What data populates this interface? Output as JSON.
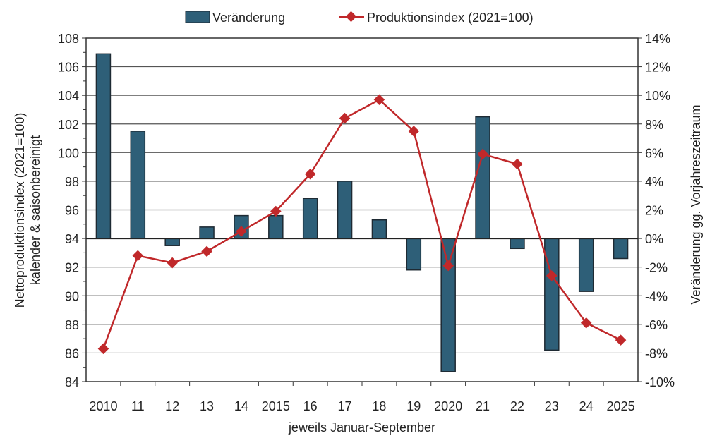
{
  "chart_data": {
    "type": "bar+line",
    "title": "",
    "xlabel": "jeweils Januar-September",
    "ylabel_left": "Nettoproduktionsindex (2021=100) kalender & saisonbereinigt",
    "ylabel_left_lines": [
      "Nettoproduktionsindex (2021=100)",
      "kalender & saisonbereinigt"
    ],
    "ylabel_right": "Veränderung gg. Vorjahreszeitraum",
    "ylim_left": [
      84,
      108
    ],
    "ylim_right": [
      -10,
      14
    ],
    "yticks_left": [
      "84",
      "86",
      "88",
      "90",
      "92",
      "94",
      "96",
      "98",
      "100",
      "102",
      "104",
      "106",
      "108"
    ],
    "yticks_right": [
      "-10%",
      "-8%",
      "-6%",
      "-4%",
      "-2%",
      "0%",
      "2%",
      "4%",
      "6%",
      "8%",
      "10%",
      "12%",
      "14%"
    ],
    "categories": [
      "2010",
      "11",
      "12",
      "13",
      "14",
      "2015",
      "16",
      "17",
      "18",
      "19",
      "2020",
      "21",
      "22",
      "23",
      "24",
      "2025"
    ],
    "grid": true,
    "legend_position": "top",
    "series": [
      {
        "name": "Veränderung",
        "type": "bar",
        "axis": "right",
        "color": "#2e5f78",
        "values": [
          12.9,
          7.5,
          -0.5,
          0.8,
          1.6,
          1.6,
          2.8,
          4.0,
          1.3,
          -2.2,
          -9.3,
          8.5,
          -0.7,
          -7.8,
          -3.7,
          -1.4
        ]
      },
      {
        "name": "Produktionsindex (2021=100)",
        "type": "line",
        "axis": "left",
        "color": "#c0282a",
        "marker": "diamond",
        "values": [
          86.3,
          92.8,
          92.3,
          93.1,
          94.5,
          95.9,
          98.5,
          102.4,
          103.7,
          101.5,
          92.1,
          99.9,
          99.2,
          91.4,
          88.1,
          86.9
        ]
      }
    ]
  }
}
